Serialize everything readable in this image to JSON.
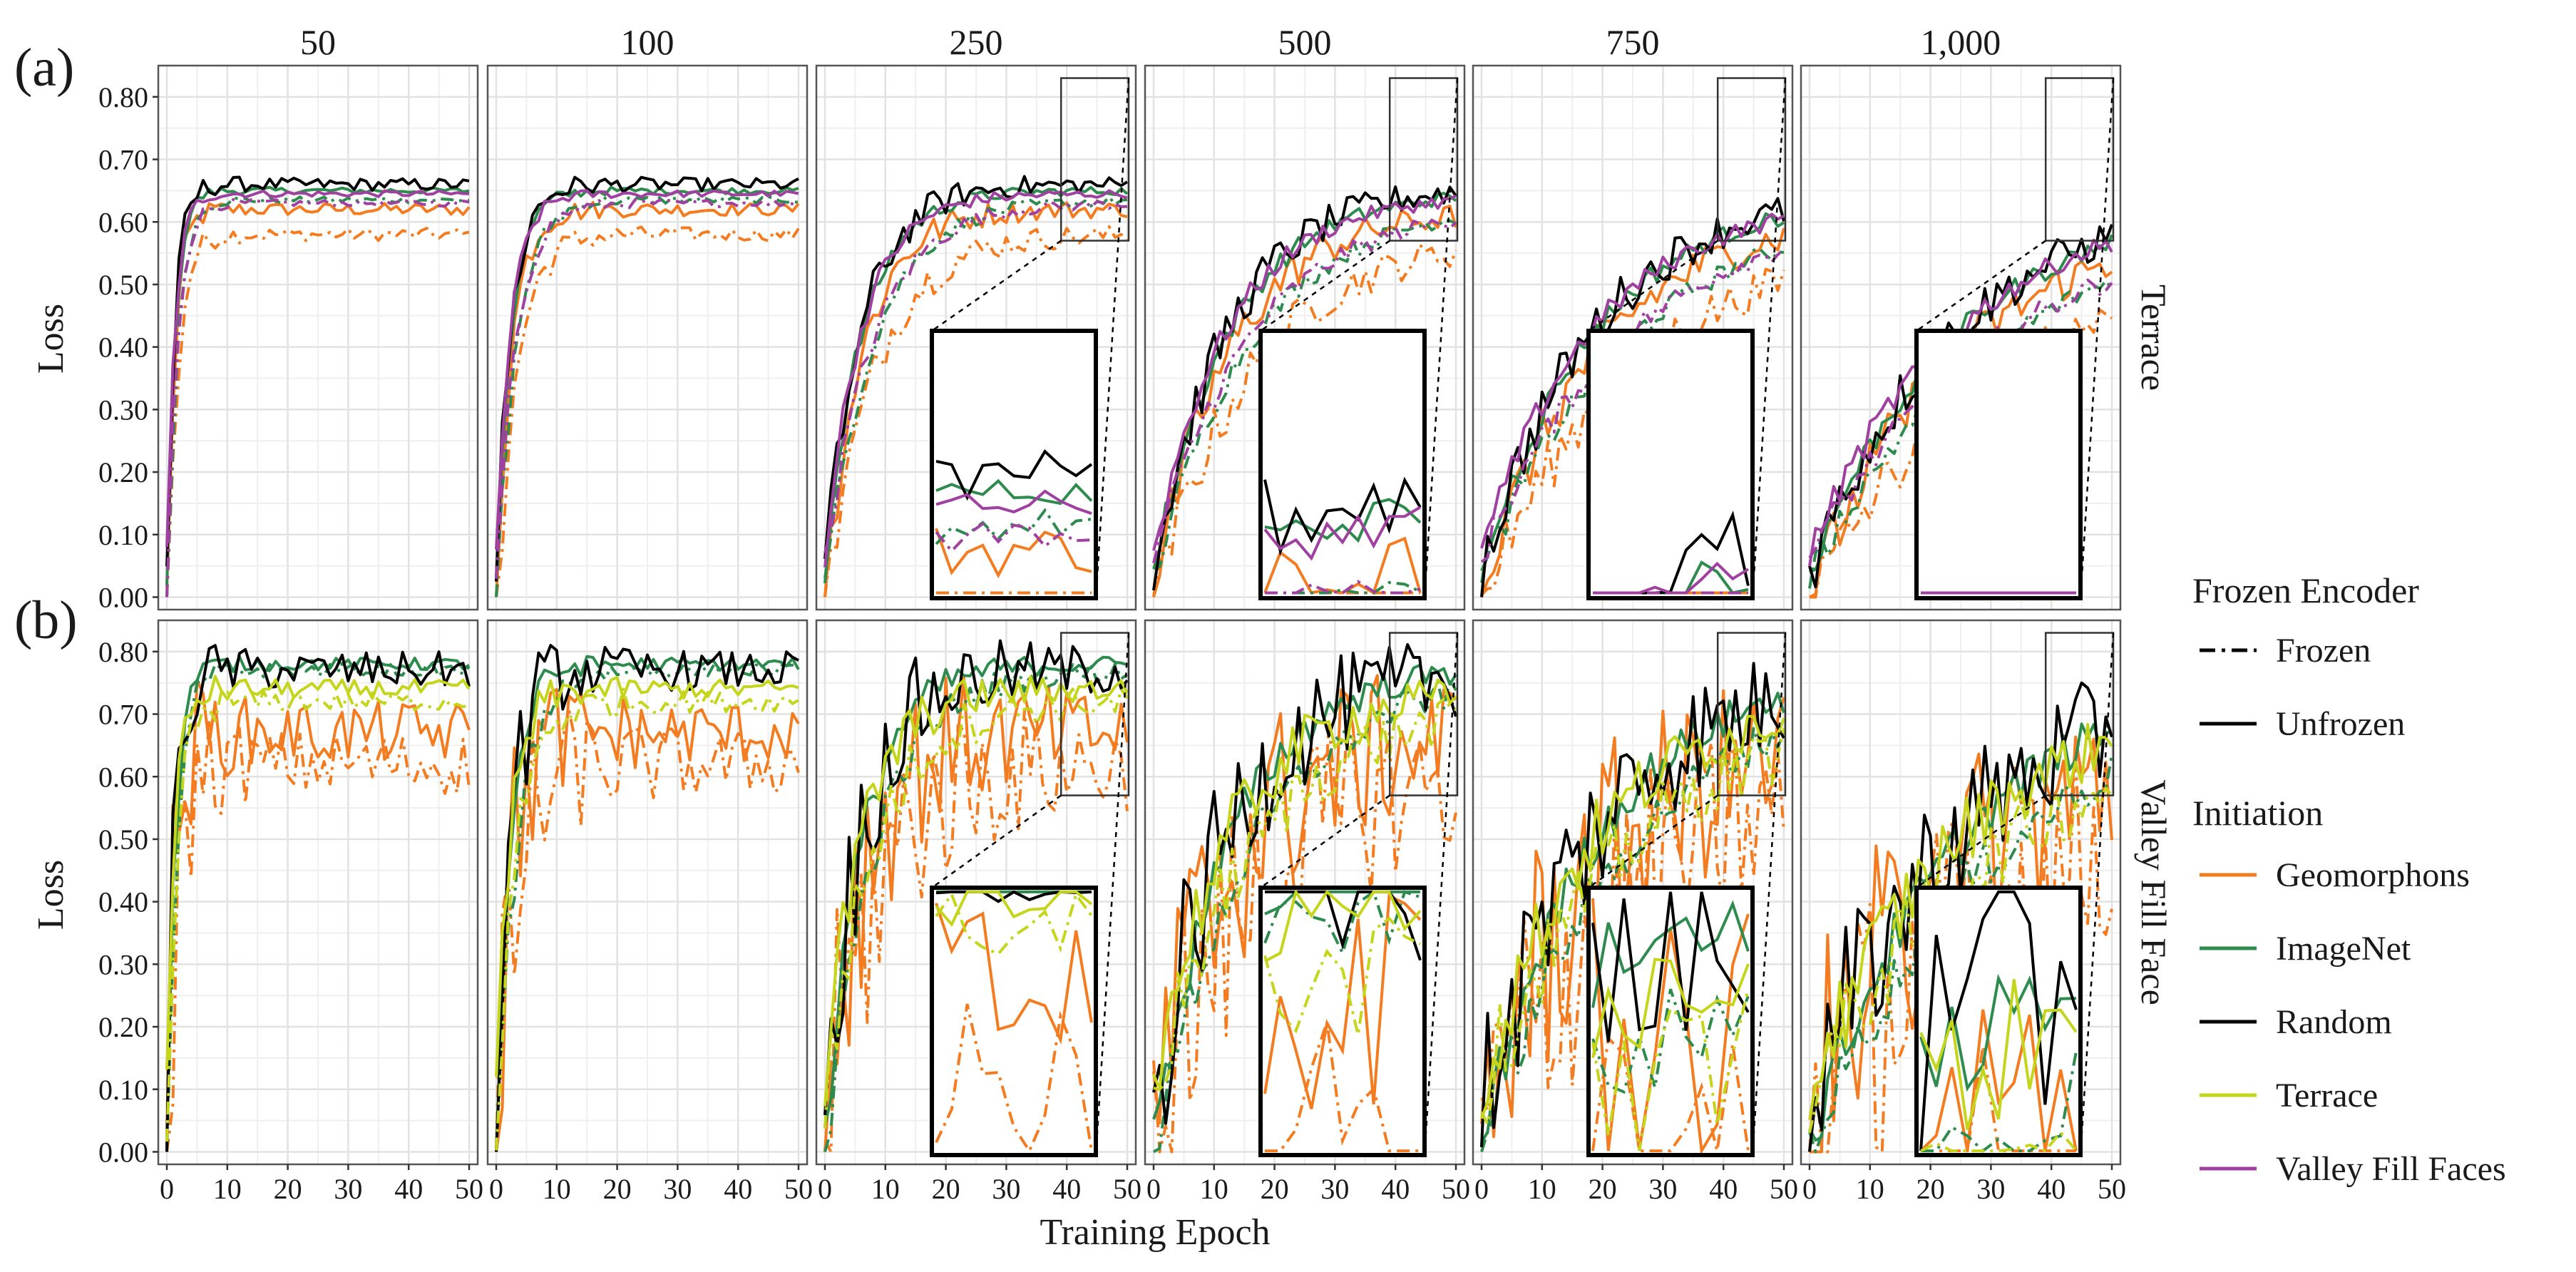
{
  "chart_data": {
    "type": "line",
    "panel_tags": [
      "(a)",
      "(b)"
    ],
    "columns": [
      "50",
      "100",
      "250",
      "500",
      "750",
      "1,000"
    ],
    "rows": [
      "Terrace",
      "Valley Fill Face"
    ],
    "xlabel": "Training Epoch",
    "ylabel": "Loss",
    "xlim": [
      0,
      50
    ],
    "x_ticks": [
      "0",
      "10",
      "20",
      "30",
      "40",
      "50"
    ],
    "ylim": [
      -0.02,
      0.85
    ],
    "y_ticks": [
      "0.00",
      "0.10",
      "0.20",
      "0.30",
      "0.40",
      "0.50",
      "0.60",
      "0.70",
      "0.80"
    ],
    "grid": true,
    "zoom_window": {
      "x": [
        40,
        50
      ],
      "y": [
        0.57,
        0.83
      ]
    },
    "legend": {
      "position": "right",
      "encoder_title": "Frozen Encoder",
      "encoder_items": [
        {
          "label": "Frozen",
          "dash": "dashdot"
        },
        {
          "label": "Unfrozen",
          "dash": "solid"
        }
      ],
      "init_title": "Initiation",
      "init_items": [
        {
          "label": "Geomorphons",
          "color": "#f47c20"
        },
        {
          "label": "ImageNet",
          "color": "#2e8b4e"
        },
        {
          "label": "Random",
          "color": "#000000"
        },
        {
          "label": "Terrace",
          "color": "#c5d51c"
        },
        {
          "label": "Valley Fill Faces",
          "color": "#a040a0"
        }
      ]
    },
    "series_keys": [
      "geomorphons",
      "imagenet",
      "random",
      "terrace",
      "valley_fill_faces"
    ],
    "rows_data": [
      {
        "row": "Terrace",
        "curves": {
          "geomorphons": {
            "start": 0.0,
            "plateau": 0.62,
            "frozen_plateau": 0.58,
            "noise": 0.01
          },
          "imagenet": {
            "start": 0.04,
            "plateau": 0.65,
            "frozen_plateau": 0.635,
            "noise": 0.005
          },
          "random": {
            "start": 0.04,
            "plateau": 0.66,
            "frozen_plateau": null,
            "noise": 0.01
          },
          "valley_fill_faces": {
            "start": 0.07,
            "plateau": 0.645,
            "frozen_plateau": 0.63,
            "noise": 0.005
          }
        }
      },
      {
        "row": "Valley Fill Face",
        "curves": {
          "geomorphons": {
            "start": 0.05,
            "plateau": 0.67,
            "frozen_plateau": 0.62,
            "noise": 0.05
          },
          "imagenet": {
            "start": 0.01,
            "plateau": 0.78,
            "frozen_plateau": 0.77,
            "noise": 0.01
          },
          "random": {
            "start": 0.07,
            "plateau": 0.77,
            "frozen_plateau": null,
            "noise": 0.03
          },
          "terrace": {
            "start": 0.1,
            "plateau": 0.74,
            "frozen_plateau": 0.72,
            "noise": 0.015
          }
        }
      }
    ]
  }
}
